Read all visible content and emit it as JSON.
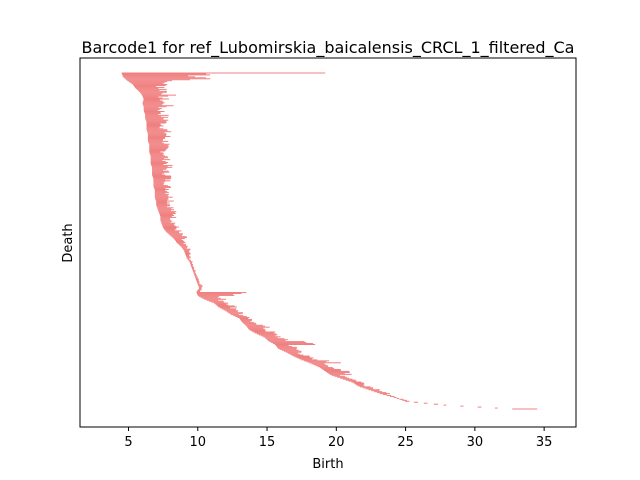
{
  "chart_data": {
    "type": "barcode",
    "title": "Barcode1 for ref_Lubomirskia_baicalensis_CRCL_1_filtered_Ca",
    "xlabel": "Birth",
    "ylabel": "Death",
    "xlim": [
      1.5,
      37.3
    ],
    "x_ticks": [
      5,
      10,
      15,
      20,
      25,
      30,
      35
    ],
    "bar_color": "#f08080",
    "bar_count": 350,
    "bars": [
      [
        4.5,
        19.2
      ],
      [
        4.6,
        11.8
      ],
      [
        4.9,
        13.7
      ],
      [
        5.3,
        8.4
      ],
      [
        5.5,
        8.0
      ],
      [
        5.8,
        8.1
      ],
      [
        6.0,
        8.3
      ],
      [
        6.1,
        7.8
      ],
      [
        6.0,
        8.7
      ],
      [
        6.1,
        8.1
      ],
      [
        6.1,
        7.6
      ],
      [
        6.2,
        7.8
      ],
      [
        6.2,
        8.0
      ],
      [
        6.3,
        10.5
      ],
      [
        6.3,
        7.8
      ],
      [
        6.3,
        7.9
      ],
      [
        6.4,
        8.0
      ],
      [
        6.4,
        8.5
      ],
      [
        6.4,
        7.9
      ],
      [
        6.5,
        8.0
      ],
      [
        6.5,
        7.8
      ],
      [
        6.5,
        8.2
      ],
      [
        6.6,
        7.9
      ],
      [
        6.6,
        8.1
      ],
      [
        6.6,
        8.0
      ],
      [
        6.7,
        8.3
      ],
      [
        6.7,
        7.9
      ],
      [
        6.7,
        8.1
      ],
      [
        6.8,
        8.2
      ],
      [
        6.8,
        8.0
      ],
      [
        6.8,
        8.4
      ],
      [
        6.9,
        8.1
      ],
      [
        6.9,
        8.2
      ],
      [
        6.9,
        8.3
      ],
      [
        7.0,
        13.2
      ],
      [
        7.0,
        8.2
      ],
      [
        7.1,
        8.3
      ],
      [
        7.2,
        8.5
      ],
      [
        7.3,
        9.8
      ],
      [
        7.3,
        8.4
      ],
      [
        7.4,
        8.5
      ],
      [
        7.5,
        8.6
      ],
      [
        7.7,
        8.8
      ],
      [
        8.0,
        9.0
      ],
      [
        8.3,
        10.5
      ],
      [
        8.5,
        9.1
      ],
      [
        8.8,
        9.3
      ],
      [
        9.0,
        13.2
      ],
      [
        9.1,
        9.5
      ],
      [
        9.2,
        9.5
      ],
      [
        9.4,
        9.6
      ],
      [
        9.5,
        9.7
      ],
      [
        9.6,
        9.8
      ],
      [
        9.7,
        9.9
      ],
      [
        9.8,
        10.0
      ],
      [
        9.9,
        10.1
      ],
      [
        10.0,
        10.3
      ],
      [
        10.1,
        10.4
      ],
      [
        9.9,
        23.2
      ],
      [
        10.0,
        14.2
      ],
      [
        10.5,
        12.0
      ],
      [
        11.2,
        12.5
      ],
      [
        11.5,
        21.6
      ],
      [
        12.0,
        13.2
      ],
      [
        12.4,
        13.5
      ],
      [
        13.0,
        13.8
      ],
      [
        13.2,
        14.5
      ],
      [
        13.5,
        16.8
      ],
      [
        13.7,
        15.2
      ],
      [
        14.2,
        22.5
      ],
      [
        14.8,
        16.2
      ],
      [
        15.1,
        24.6
      ],
      [
        15.6,
        18.9
      ],
      [
        15.8,
        17.2
      ],
      [
        16.4,
        21.2
      ],
      [
        16.9,
        18.0
      ],
      [
        17.5,
        22.6
      ],
      [
        18.2,
        20.4
      ],
      [
        18.8,
        20.0
      ],
      [
        19.2,
        25.3
      ],
      [
        19.6,
        21.5
      ],
      [
        20.4,
        21.3
      ],
      [
        21.2,
        22.0
      ],
      [
        21.6,
        25.2
      ],
      [
        22.4,
        23.3
      ],
      [
        23.2,
        24.2
      ],
      [
        24.2,
        24.5
      ],
      [
        25.0,
        25.4
      ],
      [
        27.8,
        28.1
      ],
      [
        32.7,
        34.5
      ]
    ]
  }
}
